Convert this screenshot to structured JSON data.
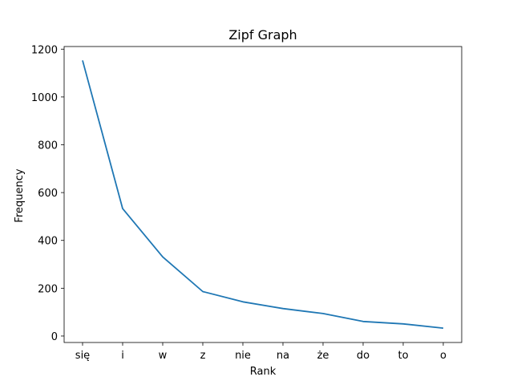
{
  "chart_data": {
    "type": "line",
    "title": "Zipf Graph",
    "xlabel": "Rank",
    "ylabel": "Frequency",
    "categories": [
      "się",
      "i",
      "w",
      "z",
      "nie",
      "na",
      "że",
      "do",
      "to",
      "o"
    ],
    "series": [
      {
        "values": [
          1153,
          533,
          331,
          186,
          143,
          115,
          94,
          61,
          51,
          33
        ],
        "color": "#1f77b4"
      }
    ],
    "yticks": [
      0,
      200,
      400,
      600,
      800,
      1000,
      1200
    ],
    "ylim": [
      -27,
      1211
    ],
    "grid": false,
    "legend": "none"
  }
}
